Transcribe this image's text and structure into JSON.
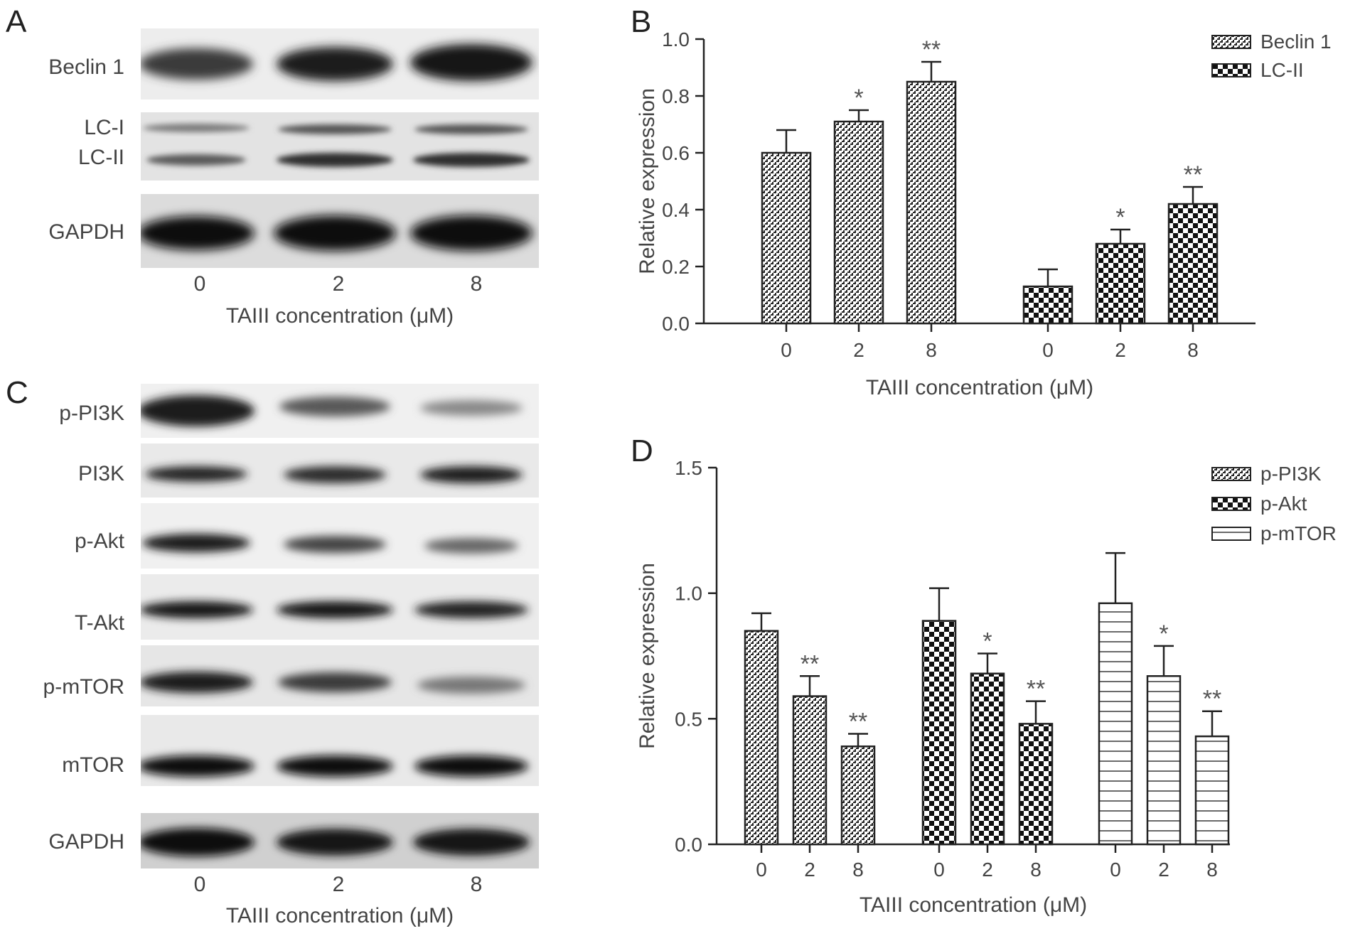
{
  "panels": {
    "A": {
      "letter": "A",
      "rows": [
        "Beclin 1",
        "LC-I",
        "LC-II",
        "GAPDH"
      ],
      "lanes": [
        "0",
        "2",
        "8"
      ],
      "xtitle": "TAIII concentration (μM)"
    },
    "C": {
      "letter": "C",
      "rows": [
        "p-PI3K",
        "PI3K",
        "p-Akt",
        "T-Akt",
        "p-mTOR",
        "mTOR",
        "GAPDH"
      ],
      "lanes": [
        "0",
        "2",
        "8"
      ],
      "xtitle": "TAIII concentration (μM)"
    },
    "B": {
      "letter": "B"
    },
    "D": {
      "letter": "D"
    }
  },
  "chart_data": [
    {
      "panel": "B",
      "type": "bar",
      "categories": [
        "0",
        "2",
        "8"
      ],
      "series": [
        {
          "name": "Beclin 1",
          "values": [
            0.6,
            0.71,
            0.85
          ],
          "errors": [
            0.08,
            0.04,
            0.07
          ],
          "sig": [
            "",
            "*",
            "**"
          ],
          "pattern": "dense"
        },
        {
          "name": "LC-II",
          "values": [
            0.13,
            0.28,
            0.42
          ],
          "errors": [
            0.06,
            0.05,
            0.06
          ],
          "sig": [
            "",
            "*",
            "**"
          ],
          "pattern": "checker"
        }
      ],
      "xlabel": "TAIII concentration (μM)",
      "ylabel": "Relative expression",
      "ylim": [
        0,
        1.0
      ],
      "yticks": [
        "0.0",
        "0.2",
        "0.4",
        "0.6",
        "0.8",
        "1.0"
      ],
      "legend": "top-right"
    },
    {
      "panel": "D",
      "type": "bar",
      "categories": [
        "0",
        "2",
        "8"
      ],
      "series": [
        {
          "name": "p-PI3K",
          "values": [
            0.85,
            0.59,
            0.39
          ],
          "errors": [
            0.07,
            0.08,
            0.05
          ],
          "sig": [
            "",
            "**",
            "**"
          ],
          "pattern": "dense"
        },
        {
          "name": "p-Akt",
          "values": [
            0.89,
            0.68,
            0.48
          ],
          "errors": [
            0.13,
            0.08,
            0.09
          ],
          "sig": [
            "",
            "*",
            "**"
          ],
          "pattern": "checker"
        },
        {
          "name": "p-mTOR",
          "values": [
            0.96,
            0.67,
            0.43
          ],
          "errors": [
            0.2,
            0.12,
            0.1
          ],
          "sig": [
            "",
            "*",
            "**"
          ],
          "pattern": "hlines"
        }
      ],
      "xlabel": "TAIII concentration (μM)",
      "ylabel": "Relative expression",
      "ylim": [
        0,
        1.5
      ],
      "yticks": [
        "0.0",
        "0.5",
        "1.0",
        "1.5"
      ],
      "legend": "top-right"
    }
  ]
}
